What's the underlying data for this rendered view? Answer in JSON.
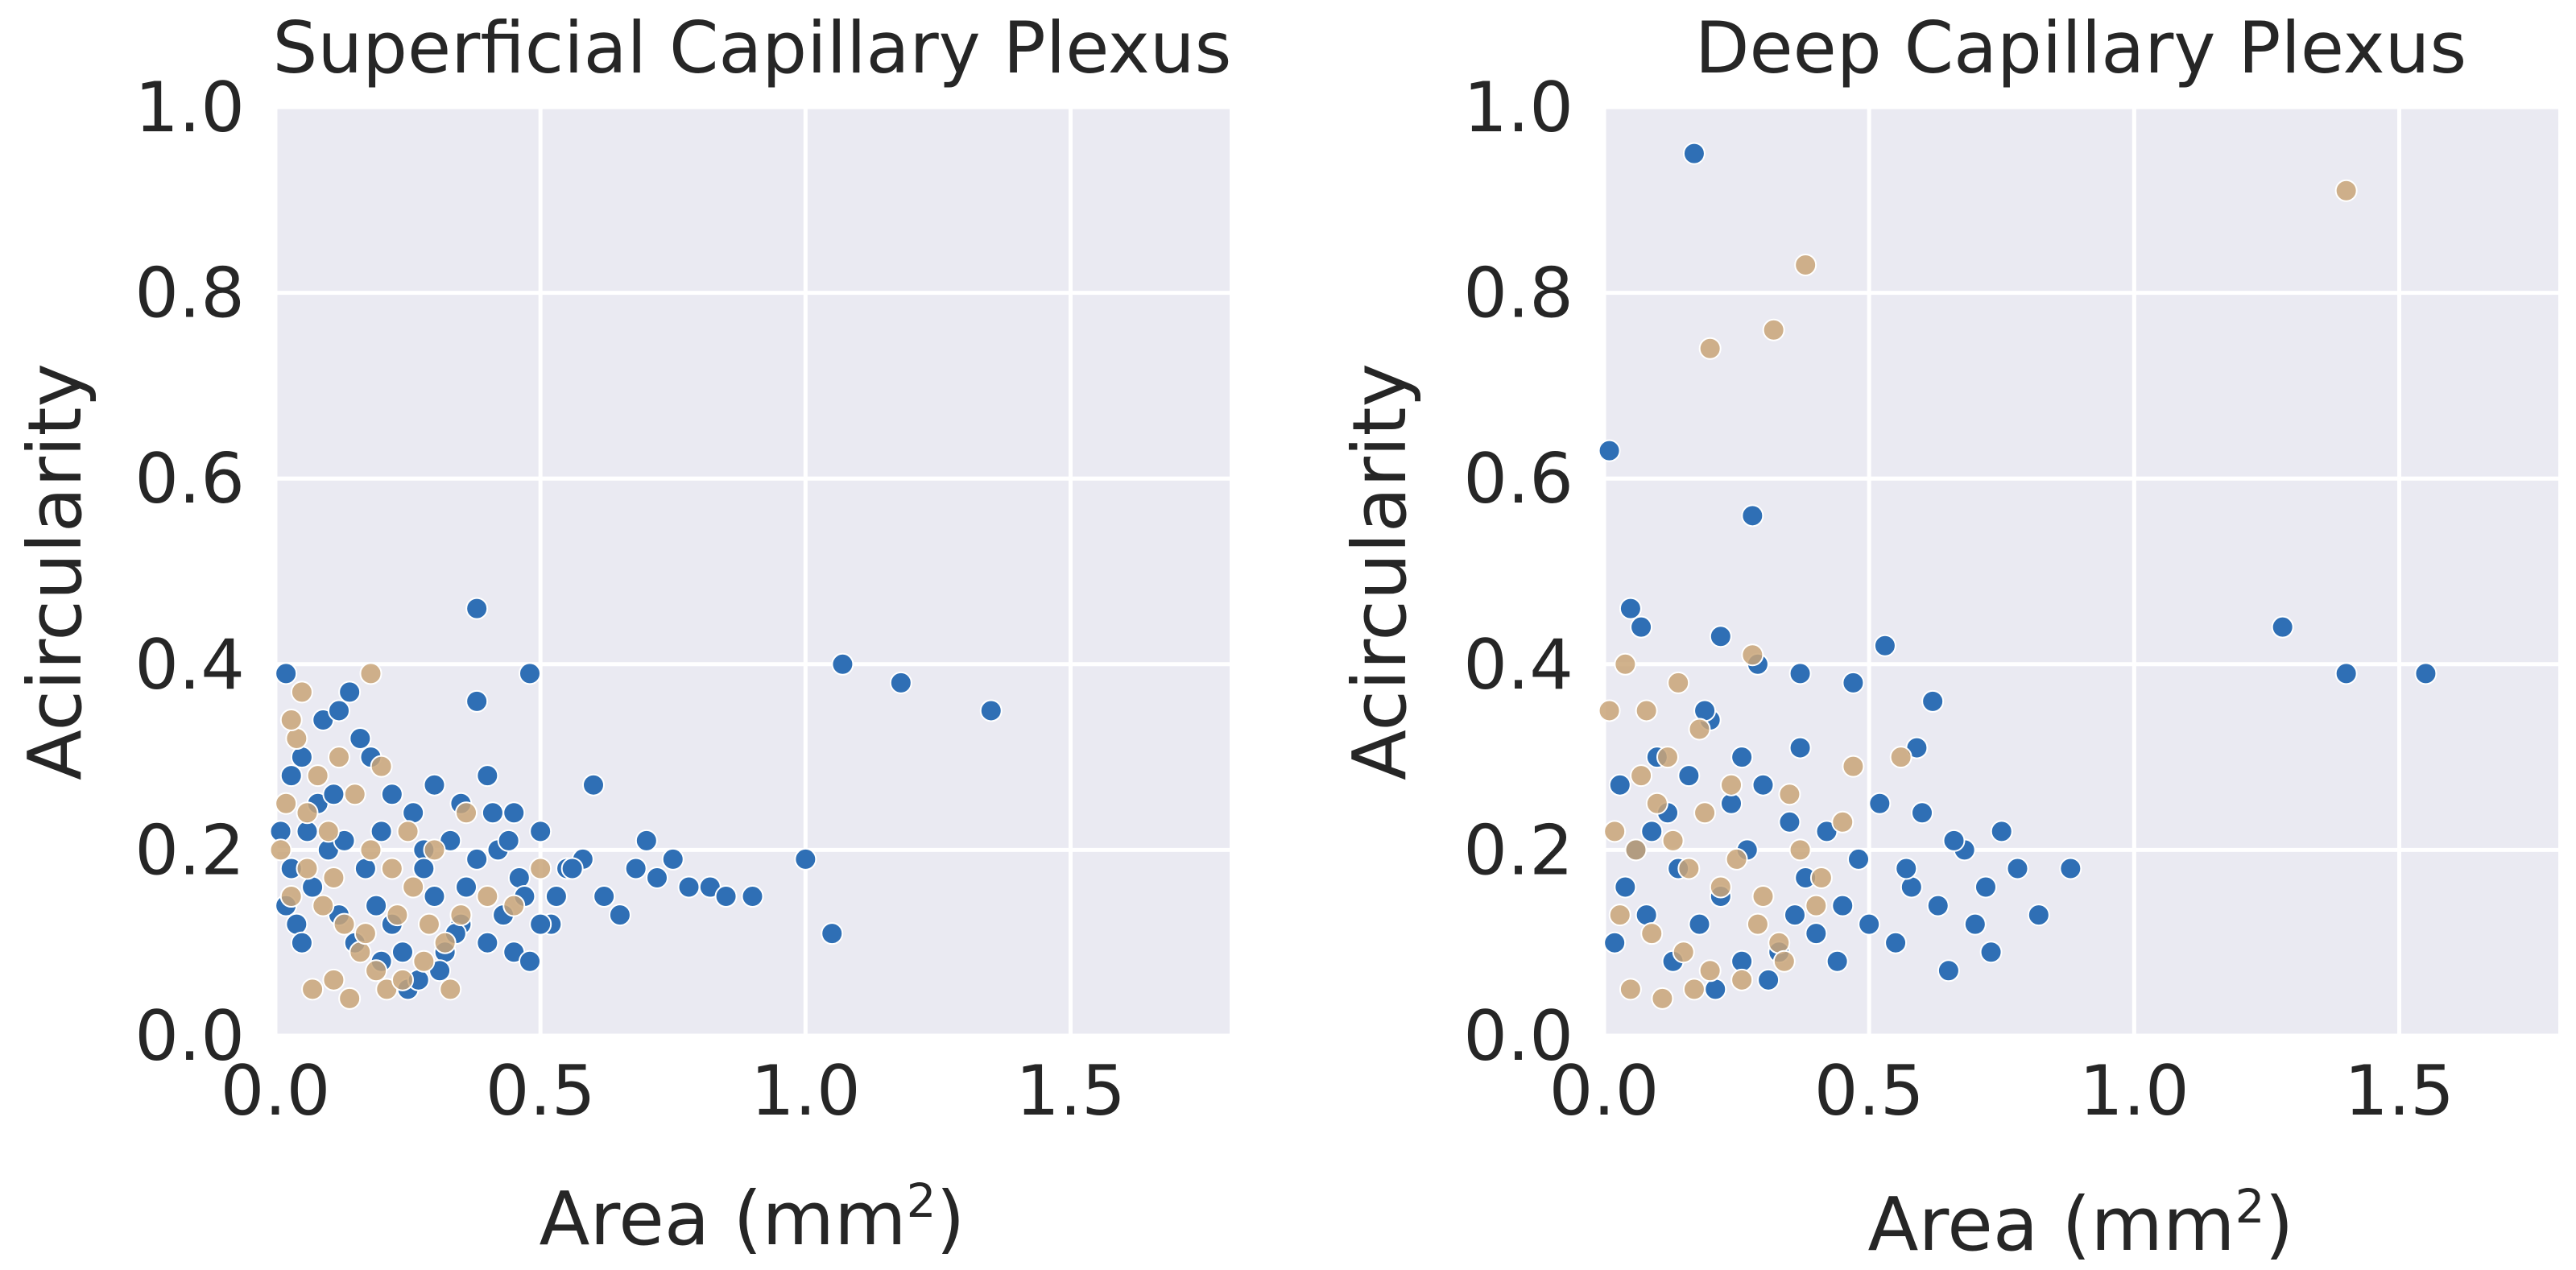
{
  "chart_data": [
    {
      "type": "scatter",
      "title": "Superficial Capillary Plexus",
      "xlabel_prefix": "Area (",
      "xlabel_unit": "mm",
      "xlabel_sup": "2",
      "xlabel_suffix": ")",
      "ylabel": "Acircularity",
      "xlim": [
        0,
        1.8
      ],
      "ylim": [
        0,
        1.0
      ],
      "xticks": [
        "0.0",
        "0.5",
        "1.0",
        "1.5"
      ],
      "yticks": [
        "0.0",
        "0.2",
        "0.4",
        "0.6",
        "0.8",
        "1.0"
      ],
      "grid": true,
      "series": [
        {
          "color": "#2f6fb5",
          "points": [
            [
              0.38,
              0.46
            ],
            [
              0.38,
              0.36
            ],
            [
              0.4,
              0.28
            ],
            [
              0.48,
              0.39
            ],
            [
              0.3,
              0.27
            ],
            [
              0.35,
              0.25
            ],
            [
              0.45,
              0.24
            ],
            [
              0.5,
              0.22
            ],
            [
              0.42,
              0.2
            ],
            [
              0.55,
              0.18
            ],
            [
              0.58,
              0.19
            ],
            [
              0.6,
              0.27
            ],
            [
              0.62,
              0.15
            ],
            [
              0.65,
              0.13
            ],
            [
              0.68,
              0.18
            ],
            [
              0.7,
              0.21
            ],
            [
              0.72,
              0.17
            ],
            [
              0.75,
              0.19
            ],
            [
              0.78,
              0.16
            ],
            [
              0.82,
              0.16
            ],
            [
              0.85,
              0.15
            ],
            [
              0.9,
              0.15
            ],
            [
              1.0,
              0.19
            ],
            [
              1.05,
              0.11
            ],
            [
              1.07,
              0.4
            ],
            [
              1.18,
              0.38
            ],
            [
              1.35,
              0.35
            ],
            [
              0.35,
              0.12
            ],
            [
              0.4,
              0.1
            ],
            [
              0.45,
              0.09
            ],
            [
              0.48,
              0.08
            ],
            [
              0.52,
              0.12
            ],
            [
              0.3,
              0.15
            ],
            [
              0.32,
              0.09
            ],
            [
              0.28,
              0.2
            ],
            [
              0.25,
              0.05
            ],
            [
              0.22,
              0.12
            ],
            [
              0.2,
              0.08
            ],
            [
              0.15,
              0.1
            ],
            [
              0.12,
              0.13
            ],
            [
              0.1,
              0.2
            ],
            [
              0.08,
              0.25
            ],
            [
              0.05,
              0.3
            ],
            [
              0.03,
              0.18
            ],
            [
              0.02,
              0.39
            ],
            [
              0.04,
              0.12
            ],
            [
              0.06,
              0.22
            ],
            [
              0.09,
              0.34
            ],
            [
              0.12,
              0.35
            ],
            [
              0.14,
              0.37
            ],
            [
              0.16,
              0.32
            ],
            [
              0.18,
              0.3
            ],
            [
              0.2,
              0.22
            ],
            [
              0.22,
              0.26
            ],
            [
              0.26,
              0.24
            ],
            [
              0.28,
              0.18
            ],
            [
              0.33,
              0.21
            ],
            [
              0.36,
              0.16
            ],
            [
              0.38,
              0.19
            ],
            [
              0.43,
              0.13
            ],
            [
              0.46,
              0.17
            ],
            [
              0.5,
              0.12
            ],
            [
              0.53,
              0.15
            ],
            [
              0.56,
              0.18
            ],
            [
              0.41,
              0.24
            ],
            [
              0.44,
              0.21
            ],
            [
              0.47,
              0.15
            ],
            [
              0.34,
              0.11
            ],
            [
              0.31,
              0.07
            ],
            [
              0.27,
              0.06
            ],
            [
              0.24,
              0.09
            ],
            [
              0.19,
              0.14
            ],
            [
              0.17,
              0.18
            ],
            [
              0.13,
              0.21
            ],
            [
              0.11,
              0.26
            ],
            [
              0.07,
              0.16
            ],
            [
              0.05,
              0.1
            ],
            [
              0.01,
              0.22
            ],
            [
              0.02,
              0.14
            ],
            [
              0.03,
              0.28
            ]
          ]
        },
        {
          "color": "#c9a478",
          "points": [
            [
              0.18,
              0.39
            ],
            [
              0.05,
              0.37
            ],
            [
              0.12,
              0.3
            ],
            [
              0.08,
              0.28
            ],
            [
              0.15,
              0.26
            ],
            [
              0.2,
              0.29
            ],
            [
              0.25,
              0.22
            ],
            [
              0.22,
              0.18
            ],
            [
              0.3,
              0.2
            ],
            [
              0.1,
              0.22
            ],
            [
              0.06,
              0.18
            ],
            [
              0.03,
              0.15
            ],
            [
              0.02,
              0.25
            ],
            [
              0.04,
              0.32
            ],
            [
              0.09,
              0.14
            ],
            [
              0.13,
              0.12
            ],
            [
              0.16,
              0.09
            ],
            [
              0.19,
              0.07
            ],
            [
              0.21,
              0.05
            ],
            [
              0.24,
              0.06
            ],
            [
              0.28,
              0.08
            ],
            [
              0.32,
              0.1
            ],
            [
              0.35,
              0.13
            ],
            [
              0.4,
              0.15
            ],
            [
              0.45,
              0.14
            ],
            [
              0.5,
              0.18
            ],
            [
              0.07,
              0.05
            ],
            [
              0.11,
              0.06
            ],
            [
              0.14,
              0.04
            ],
            [
              0.17,
              0.11
            ],
            [
              0.23,
              0.13
            ],
            [
              0.26,
              0.16
            ],
            [
              0.29,
              0.12
            ],
            [
              0.01,
              0.2
            ],
            [
              0.03,
              0.34
            ],
            [
              0.06,
              0.24
            ],
            [
              0.11,
              0.17
            ],
            [
              0.18,
              0.2
            ],
            [
              0.33,
              0.05
            ],
            [
              0.36,
              0.24
            ]
          ]
        }
      ]
    },
    {
      "type": "scatter",
      "title": "Deep Capillary Plexus",
      "xlabel_prefix": "Area (",
      "xlabel_unit": "mm",
      "xlabel_sup": "2",
      "xlabel_suffix": ")",
      "ylabel": "Acircularity",
      "xlim": [
        0,
        1.8
      ],
      "ylim": [
        0,
        1.0
      ],
      "xticks": [
        "0.0",
        "0.5",
        "1.0",
        "1.5"
      ],
      "yticks": [
        "0.0",
        "0.2",
        "0.4",
        "0.6",
        "0.8",
        "1.0"
      ],
      "grid": true,
      "series": [
        {
          "color": "#2f6fb5",
          "points": [
            [
              0.17,
              0.95
            ],
            [
              0.01,
              0.63
            ],
            [
              0.28,
              0.56
            ],
            [
              0.05,
              0.46
            ],
            [
              0.07,
              0.44
            ],
            [
              0.22,
              0.43
            ],
            [
              0.53,
              0.42
            ],
            [
              0.47,
              0.38
            ],
            [
              0.37,
              0.39
            ],
            [
              0.29,
              0.4
            ],
            [
              0.62,
              0.36
            ],
            [
              0.59,
              0.31
            ],
            [
              0.37,
              0.31
            ],
            [
              0.26,
              0.3
            ],
            [
              0.2,
              0.34
            ],
            [
              1.28,
              0.44
            ],
            [
              1.4,
              0.39
            ],
            [
              1.55,
              0.39
            ],
            [
              0.88,
              0.18
            ],
            [
              0.82,
              0.13
            ],
            [
              0.78,
              0.18
            ],
            [
              0.75,
              0.22
            ],
            [
              0.73,
              0.09
            ],
            [
              0.7,
              0.12
            ],
            [
              0.68,
              0.2
            ],
            [
              0.65,
              0.07
            ],
            [
              0.63,
              0.14
            ],
            [
              0.6,
              0.24
            ],
            [
              0.58,
              0.16
            ],
            [
              0.55,
              0.1
            ],
            [
              0.52,
              0.25
            ],
            [
              0.5,
              0.12
            ],
            [
              0.48,
              0.19
            ],
            [
              0.45,
              0.14
            ],
            [
              0.42,
              0.22
            ],
            [
              0.4,
              0.11
            ],
            [
              0.38,
              0.17
            ],
            [
              0.35,
              0.23
            ],
            [
              0.33,
              0.09
            ],
            [
              0.3,
              0.27
            ],
            [
              0.27,
              0.2
            ],
            [
              0.24,
              0.25
            ],
            [
              0.22,
              0.15
            ],
            [
              0.19,
              0.35
            ],
            [
              0.16,
              0.28
            ],
            [
              0.14,
              0.18
            ],
            [
              0.12,
              0.24
            ],
            [
              0.1,
              0.3
            ],
            [
              0.08,
              0.13
            ],
            [
              0.06,
              0.2
            ],
            [
              0.04,
              0.16
            ],
            [
              0.03,
              0.27
            ],
            [
              0.02,
              0.1
            ],
            [
              0.72,
              0.16
            ],
            [
              0.66,
              0.21
            ],
            [
              0.57,
              0.18
            ],
            [
              0.44,
              0.08
            ],
            [
              0.36,
              0.13
            ],
            [
              0.31,
              0.06
            ],
            [
              0.26,
              0.08
            ],
            [
              0.21,
              0.05
            ],
            [
              0.18,
              0.12
            ],
            [
              0.13,
              0.08
            ],
            [
              0.09,
              0.22
            ]
          ]
        },
        {
          "color": "#c9a478",
          "points": [
            [
              1.4,
              0.91
            ],
            [
              0.38,
              0.83
            ],
            [
              0.32,
              0.76
            ],
            [
              0.2,
              0.74
            ],
            [
              0.28,
              0.41
            ],
            [
              0.04,
              0.4
            ],
            [
              0.14,
              0.38
            ],
            [
              0.08,
              0.35
            ],
            [
              0.18,
              0.33
            ],
            [
              0.12,
              0.3
            ],
            [
              0.56,
              0.3
            ],
            [
              0.47,
              0.29
            ],
            [
              0.24,
              0.27
            ],
            [
              0.35,
              0.26
            ],
            [
              0.1,
              0.25
            ],
            [
              0.02,
              0.22
            ],
            [
              0.06,
              0.2
            ],
            [
              0.16,
              0.18
            ],
            [
              0.22,
              0.16
            ],
            [
              0.3,
              0.15
            ],
            [
              0.4,
              0.14
            ],
            [
              0.45,
              0.23
            ],
            [
              0.03,
              0.13
            ],
            [
              0.09,
              0.11
            ],
            [
              0.15,
              0.09
            ],
            [
              0.2,
              0.07
            ],
            [
              0.26,
              0.06
            ],
            [
              0.05,
              0.05
            ],
            [
              0.11,
              0.04
            ],
            [
              0.17,
              0.05
            ],
            [
              0.33,
              0.1
            ],
            [
              0.37,
              0.2
            ],
            [
              0.01,
              0.35
            ],
            [
              0.07,
              0.28
            ],
            [
              0.13,
              0.21
            ],
            [
              0.19,
              0.24
            ],
            [
              0.25,
              0.19
            ],
            [
              0.29,
              0.12
            ],
            [
              0.34,
              0.08
            ],
            [
              0.41,
              0.17
            ]
          ]
        }
      ]
    }
  ]
}
